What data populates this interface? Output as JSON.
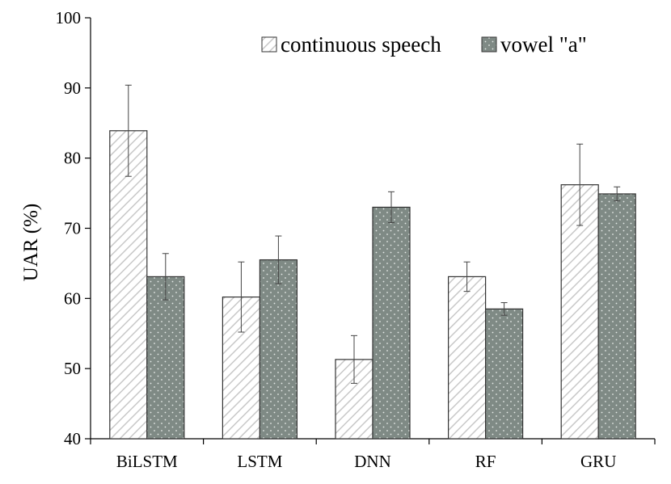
{
  "chart_data": {
    "type": "bar",
    "title": "",
    "xlabel": "",
    "ylabel": "UAR (%)",
    "ylim": [
      40,
      100
    ],
    "yticks": [
      40,
      50,
      60,
      70,
      80,
      90,
      100
    ],
    "categories": [
      "BiLSTM",
      "LSTM",
      "DNN",
      "RF",
      "GRU"
    ],
    "grid": false,
    "legend_position": "top-right",
    "series": [
      {
        "name": "continuous speech",
        "pattern": "diagonal-hatch",
        "color": "#c8c8c8",
        "values": [
          83.9,
          60.2,
          51.3,
          63.1,
          76.2
        ],
        "error": [
          6.5,
          5.0,
          3.4,
          2.1,
          5.8
        ]
      },
      {
        "name": "vowel \"a\"",
        "pattern": "dots",
        "color": "#7f8a85",
        "values": [
          63.1,
          65.5,
          73.0,
          58.5,
          74.9
        ],
        "error": [
          3.3,
          3.4,
          2.2,
          0.9,
          1.0
        ]
      }
    ]
  }
}
